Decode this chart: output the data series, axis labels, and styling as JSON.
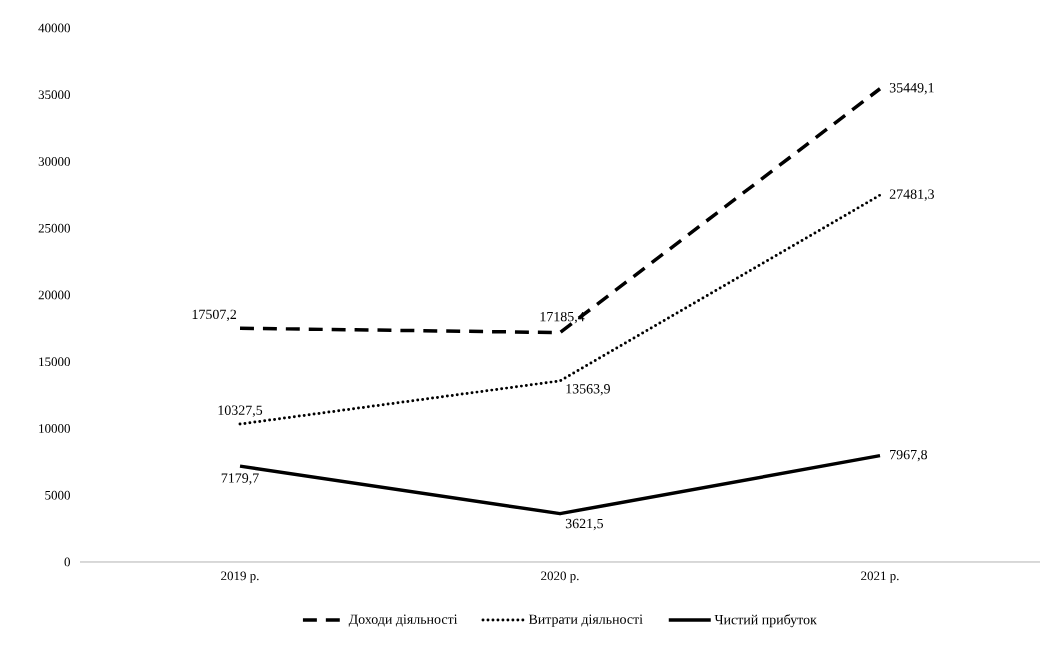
{
  "chart_data": {
    "type": "line",
    "categories": [
      "2019 р.",
      "2020 р.",
      "2021 р."
    ],
    "series": [
      {
        "name": "Доходи діяльності",
        "color": "#000000",
        "line_style": "dashed",
        "values": [
          17507.2,
          17185.4,
          35449.1
        ],
        "value_labels": [
          "17507,2",
          "17185,4",
          "35449,1"
        ]
      },
      {
        "name": "Витрати діяльності",
        "color": "#000000",
        "line_style": "dotted",
        "values": [
          10327.5,
          13563.9,
          27481.3
        ],
        "value_labels": [
          "10327,5",
          "13563,9",
          "27481,3"
        ]
      },
      {
        "name": "Чистий прибуток",
        "color": "#000000",
        "line_style": "solid",
        "values": [
          7179.7,
          3621.5,
          7967.8
        ],
        "value_labels": [
          "7179,7",
          "3621,5",
          "7967,8"
        ]
      }
    ],
    "ylim": [
      0,
      40000
    ],
    "yticks": [
      0,
      5000,
      10000,
      15000,
      20000,
      25000,
      30000,
      35000,
      40000
    ],
    "grid": false,
    "legend": "bottom"
  }
}
